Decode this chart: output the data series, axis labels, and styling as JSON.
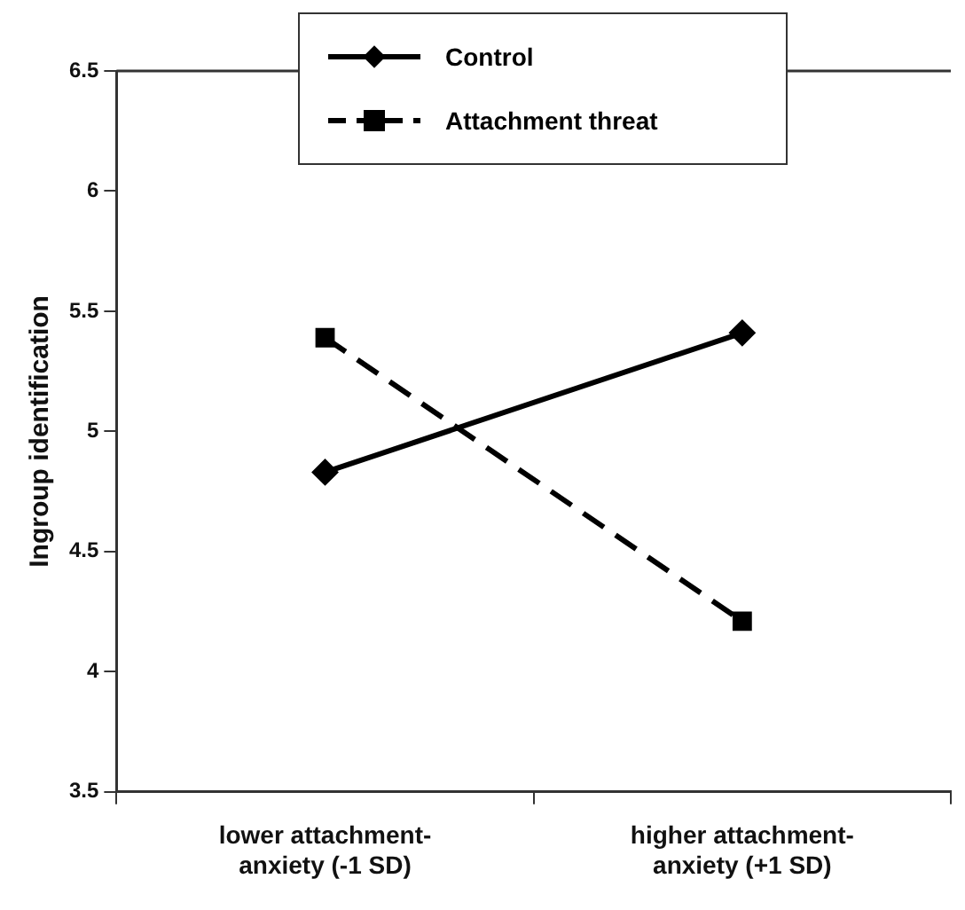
{
  "chart_data": {
    "type": "line",
    "ylabel": "Ingroup identification",
    "categories": [
      "lower attachment-anxiety (-1 SD)",
      "higher attachment-anxiety (+1 SD)"
    ],
    "series": [
      {
        "name": "Control",
        "color": "#000000",
        "values": [
          4.83,
          5.41
        ],
        "marker": "diamond",
        "line_style": "solid"
      },
      {
        "name": "Attachment threat",
        "color": "#000000",
        "values": [
          5.39,
          4.21
        ],
        "marker": "square",
        "line_style": "dashed"
      }
    ],
    "ylim": [
      3.5,
      6.5
    ],
    "yticks": [
      3.5,
      4,
      4.5,
      5,
      5.5,
      6,
      6.5
    ],
    "grid": false,
    "legend": "top"
  }
}
